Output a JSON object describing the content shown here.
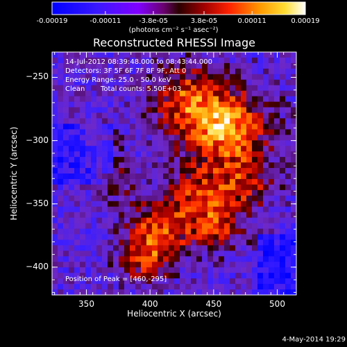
{
  "colorbar": {
    "ticks": [
      "-0.00019",
      "-0.00011",
      "-3.8e-05",
      "3.8e-05",
      "0.00011",
      "0.00019"
    ],
    "tick_values": [
      -0.00019,
      -0.00011,
      -3.8e-05,
      3.8e-05,
      0.00011,
      0.00019
    ],
    "range": [
      -0.00019,
      0.00019
    ],
    "units": "(photons cm⁻² s⁻¹ asec⁻²)"
  },
  "chart_data": {
    "type": "heatmap",
    "title": "Reconstructed RHESSI Image",
    "xlabel": "Heliocentric X (arcsec)",
    "ylabel": "Heliocentric Y (arcsec)",
    "xlim": [
      323,
      515
    ],
    "ylim": [
      -422,
      -230
    ],
    "xticks": [
      350,
      400,
      450,
      500
    ],
    "yticks": [
      -250,
      -300,
      -350,
      -400
    ],
    "annotations": {
      "time": "14-Jul-2012 08:39:48.000 to 08:43:44.000",
      "detectors": "Detectors: 3F 5F 6F 7F 8F 9F, Att 0",
      "energy": "Energy Range: 25.0 - 50.0 keV",
      "clean": "Clean",
      "counts": "Total counts: 5.50E+03",
      "peak": "Position of Peak = [460,-295]"
    },
    "peak": [
      460,
      -295
    ]
  },
  "footer": {
    "date": "4-May-2014 19:29"
  },
  "colors": {
    "background": "#000000",
    "text": "#ffffff"
  }
}
